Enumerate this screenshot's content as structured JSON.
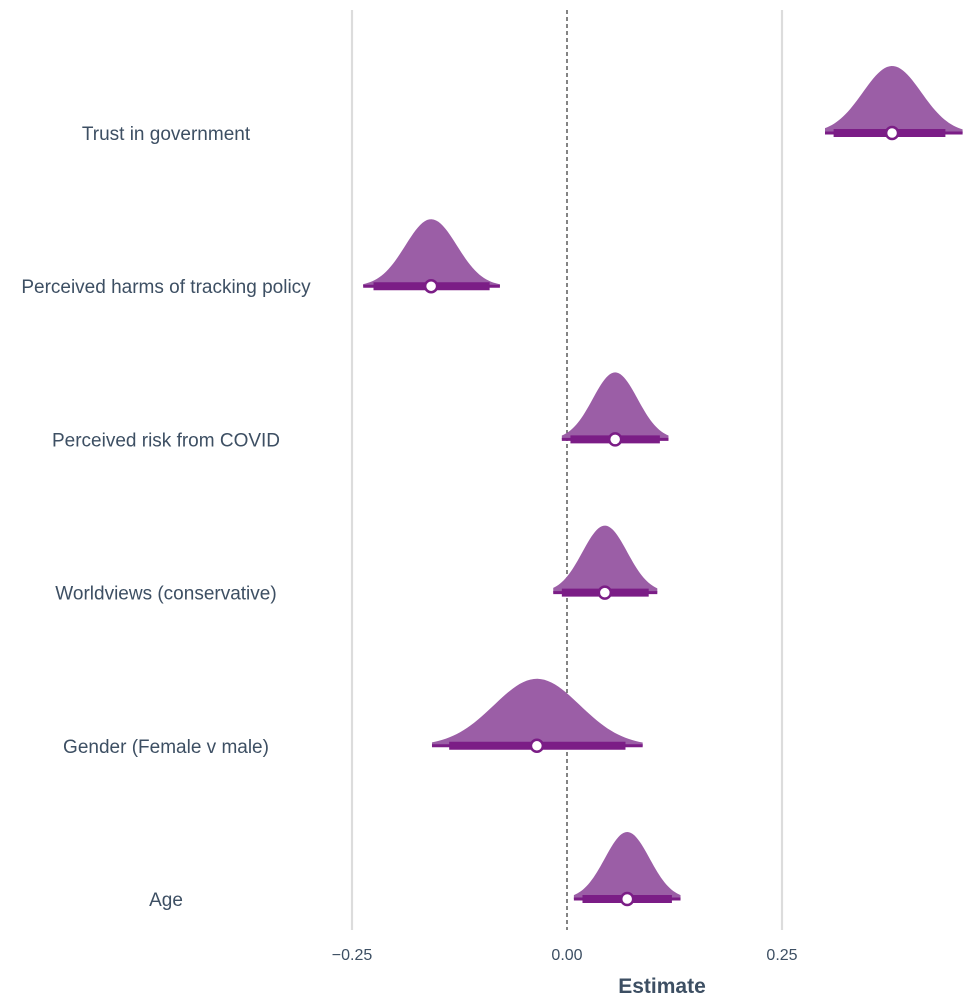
{
  "chart_data": {
    "type": "interval",
    "title": "",
    "xlabel": "Estimate",
    "ylabel": "",
    "xlim": [
      -0.25,
      0.45
    ],
    "xticks": [
      -0.25,
      0.0,
      0.25
    ],
    "xtick_labels": [
      "−0.25",
      "0.00",
      "0.25"
    ],
    "reference_line": 0.0,
    "grid": "vertical major gridlines",
    "legend": "none",
    "colors": {
      "distribution_fill": "#9b5ea6",
      "interval_line": "#7b1d86",
      "point_fill": "#ffffff",
      "text": "#3d4f63",
      "gridline": "#dcdcdc",
      "reference_line": "#333333"
    },
    "categories": [
      "Trust in government",
      "Perceived harms of tracking policy",
      "Perceived risk from COVID",
      "Worldviews (conservative)",
      "Gender (Female v male)",
      "Age"
    ],
    "estimates": [
      {
        "label": "Trust in government",
        "point": 0.378,
        "inner": [
          0.31,
          0.44
        ],
        "outer": [
          0.3,
          0.46
        ],
        "sd": 0.034
      },
      {
        "label": "Perceived harms of tracking policy",
        "point": -0.158,
        "inner": [
          -0.225,
          -0.09
        ],
        "outer": [
          -0.237,
          -0.078
        ],
        "sd": 0.03
      },
      {
        "label": "Perceived risk from COVID",
        "point": 0.056,
        "inner": [
          0.004,
          0.108
        ],
        "outer": [
          -0.006,
          0.118
        ],
        "sd": 0.026
      },
      {
        "label": "Worldviews (conservative)",
        "point": 0.044,
        "inner": [
          -0.006,
          0.095
        ],
        "outer": [
          -0.016,
          0.105
        ],
        "sd": 0.026
      },
      {
        "label": "Gender (Female v male)",
        "point": -0.035,
        "inner": [
          -0.137,
          0.068
        ],
        "outer": [
          -0.157,
          0.088
        ],
        "sd": 0.05
      },
      {
        "label": "Age",
        "point": 0.07,
        "inner": [
          0.018,
          0.122
        ],
        "outer": [
          0.008,
          0.132
        ],
        "sd": 0.026
      }
    ]
  }
}
